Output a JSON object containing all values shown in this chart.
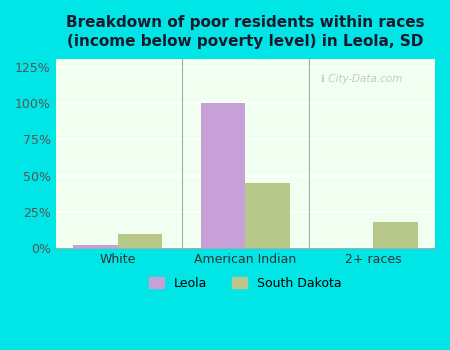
{
  "title": "Breakdown of poor residents within races\n(income below poverty level) in Leola, SD",
  "categories": [
    "White",
    "American Indian",
    "2+ races"
  ],
  "leola_values": [
    2.0,
    100.0,
    0.0
  ],
  "sd_values": [
    10.0,
    45.0,
    18.0
  ],
  "leola_color": "#c8a0d8",
  "sd_color": "#b8c88a",
  "yticks": [
    0,
    25,
    50,
    75,
    100,
    125
  ],
  "ylim": [
    0,
    130
  ],
  "outer_bg": "#00e5e5",
  "plot_bg_light": "#f0fff0",
  "plot_bg_dark": "#d8f0d0",
  "title_color": "#1a1a2e",
  "bar_width": 0.35,
  "legend_labels": [
    "Leola",
    "South Dakota"
  ]
}
